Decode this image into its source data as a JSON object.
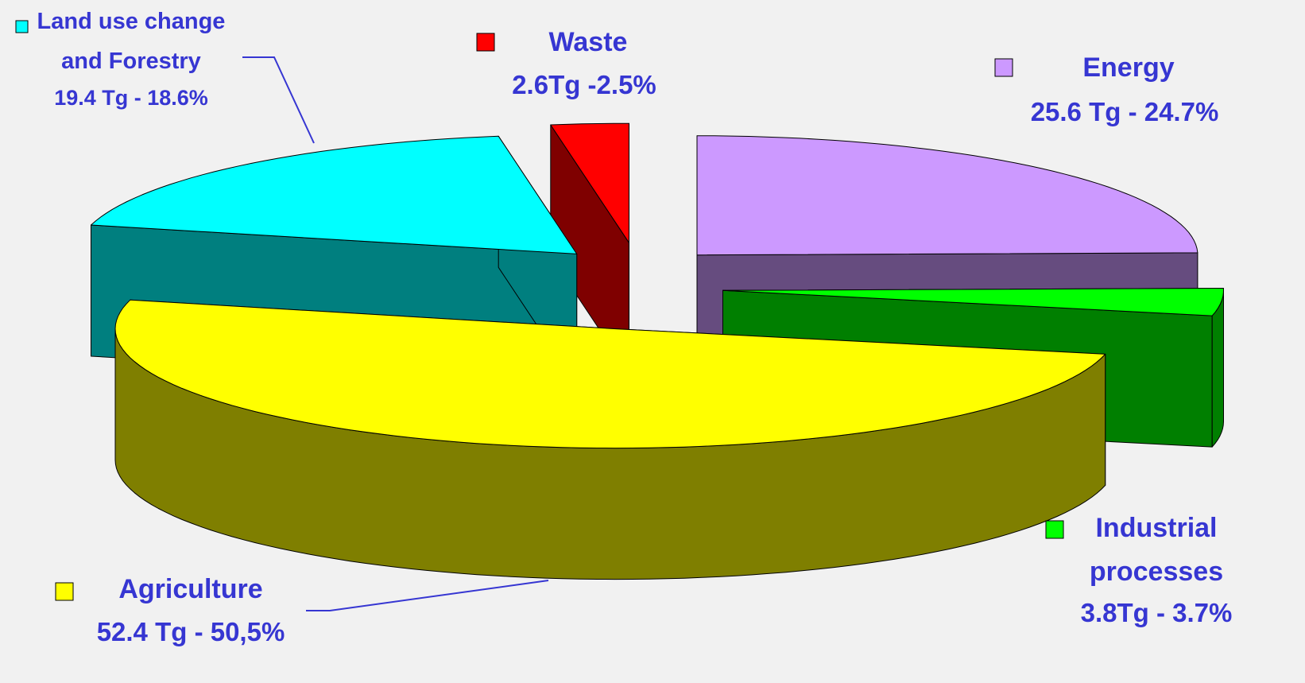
{
  "chart_data": {
    "type": "pie",
    "categories": [
      "Energy",
      "Industrial processes",
      "Agriculture",
      "Land use change and Forestry",
      "Waste"
    ],
    "values": [
      24.7,
      3.7,
      50.5,
      18.6,
      2.5
    ],
    "value_labels": [
      "25.6 Tg - 24.7%",
      "3.8Tg - 3.7%",
      "52.4 Tg - 50,5%",
      "19.4 Tg - 18.6%",
      "2.6Tg -2.5%"
    ],
    "colors": [
      "#cc99ff",
      "#00ff00",
      "#ffff00",
      "#00ffff",
      "#ff0000"
    ],
    "exploded": true
  }
}
